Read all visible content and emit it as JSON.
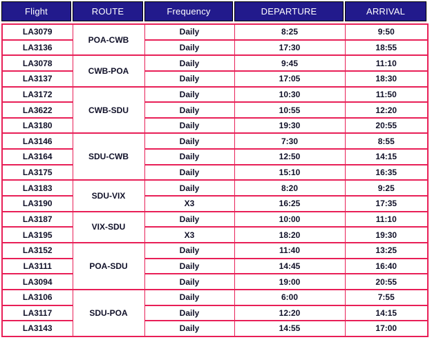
{
  "colors": {
    "header_bg": "#221a8c",
    "header_text": "#ffffff",
    "header_outline": "#000000",
    "cell_border": "#e81e56",
    "cell_text": "#101028"
  },
  "table": {
    "headers": [
      "Flight",
      "ROUTE",
      "Frequency",
      "DEPARTURE",
      "ARRIVAL"
    ],
    "groups": [
      {
        "route": "POA-CWB",
        "flights": [
          {
            "flight": "LA3079",
            "frequency": "Daily",
            "departure": "8:25",
            "arrival": "9:50"
          },
          {
            "flight": "LA3136",
            "frequency": "Daily",
            "departure": "17:30",
            "arrival": "18:55"
          }
        ]
      },
      {
        "route": "CWB-POA",
        "flights": [
          {
            "flight": "LA3078",
            "frequency": "Daily",
            "departure": "9:45",
            "arrival": "11:10"
          },
          {
            "flight": "LA3137",
            "frequency": "Daily",
            "departure": "17:05",
            "arrival": "18:30"
          }
        ]
      },
      {
        "route": "CWB-SDU",
        "flights": [
          {
            "flight": "LA3172",
            "frequency": "Daily",
            "departure": "10:30",
            "arrival": "11:50"
          },
          {
            "flight": "LA3622",
            "frequency": "Daily",
            "departure": "10:55",
            "arrival": "12:20"
          },
          {
            "flight": "LA3180",
            "frequency": "Daily",
            "departure": "19:30",
            "arrival": "20:55"
          }
        ]
      },
      {
        "route": "SDU-CWB",
        "flights": [
          {
            "flight": "LA3146",
            "frequency": "Daily",
            "departure": "7:30",
            "arrival": "8:55"
          },
          {
            "flight": "LA3164",
            "frequency": "Daily",
            "departure": "12:50",
            "arrival": "14:15"
          },
          {
            "flight": "LA3175",
            "frequency": "Daily",
            "departure": "15:10",
            "arrival": "16:35"
          }
        ]
      },
      {
        "route": "SDU-VIX",
        "flights": [
          {
            "flight": "LA3183",
            "frequency": "Daily",
            "departure": "8:20",
            "arrival": "9:25"
          },
          {
            "flight": "LA3190",
            "frequency": "X3",
            "departure": "16:25",
            "arrival": "17:35"
          }
        ]
      },
      {
        "route": "VIX-SDU",
        "flights": [
          {
            "flight": "LA3187",
            "frequency": "Daily",
            "departure": "10:00",
            "arrival": "11:10"
          },
          {
            "flight": "LA3195",
            "frequency": "X3",
            "departure": "18:20",
            "arrival": "19:30"
          }
        ]
      },
      {
        "route": "POA-SDU",
        "flights": [
          {
            "flight": "LA3152",
            "frequency": "Daily",
            "departure": "11:40",
            "arrival": "13:25"
          },
          {
            "flight": "LA3111",
            "frequency": "Daily",
            "departure": "14:45",
            "arrival": "16:40"
          },
          {
            "flight": "LA3094",
            "frequency": "Daily",
            "departure": "19:00",
            "arrival": "20:55"
          }
        ]
      },
      {
        "route": "SDU-POA",
        "flights": [
          {
            "flight": "LA3106",
            "frequency": "Daily",
            "departure": "6:00",
            "arrival": "7:55"
          },
          {
            "flight": "LA3117",
            "frequency": "Daily",
            "departure": "12:20",
            "arrival": "14:15"
          },
          {
            "flight": "LA3143",
            "frequency": "Daily",
            "departure": "14:55",
            "arrival": "17:00"
          }
        ]
      }
    ]
  }
}
